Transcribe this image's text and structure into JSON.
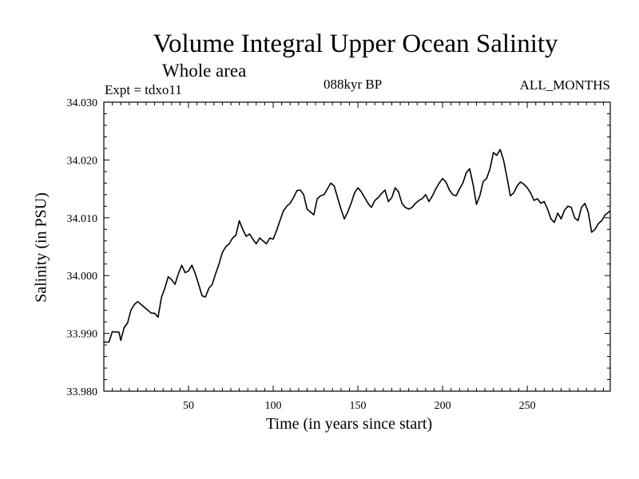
{
  "chart_data": {
    "type": "line",
    "title": "Volume Integral Upper Ocean Salinity",
    "subtitle": "Whole area",
    "annotations": {
      "experiment": "Expt = tdxo11",
      "period": "088kyr BP",
      "months": "ALL_MONTHS"
    },
    "xlabel": "Time (in years since start)",
    "ylabel": "Salinity (in PSU)",
    "xlim": [
      0,
      299
    ],
    "ylim": [
      33.98,
      34.03
    ],
    "xticks": [
      50,
      100,
      150,
      200,
      250
    ],
    "xtick_labels": [
      "50",
      "100",
      "150",
      "200",
      "250"
    ],
    "yticks": [
      33.98,
      33.99,
      34.0,
      34.01,
      34.02,
      34.03
    ],
    "ytick_labels": [
      "33.980",
      "33.990",
      "34.000",
      "34.010",
      "34.020",
      "34.030"
    ],
    "series": [
      {
        "name": "Salinity",
        "x": [
          0,
          3,
          5,
          9,
          10,
          12,
          14,
          16,
          18,
          20,
          22,
          24,
          26,
          28,
          30,
          32,
          34,
          36,
          38,
          40,
          42,
          44,
          46,
          48,
          50,
          52,
          54,
          56,
          58,
          60,
          62,
          64,
          66,
          68,
          70,
          72,
          74,
          76,
          78,
          80,
          82,
          84,
          86,
          88,
          90,
          92,
          94,
          96,
          98,
          100,
          102,
          104,
          106,
          108,
          110,
          112,
          114,
          116,
          118,
          120,
          122,
          124,
          126,
          128,
          130,
          132,
          134,
          136,
          138,
          140,
          142,
          144,
          146,
          148,
          150,
          152,
          154,
          156,
          158,
          160,
          162,
          164,
          166,
          168,
          170,
          172,
          174,
          176,
          178,
          180,
          182,
          184,
          186,
          188,
          190,
          192,
          194,
          196,
          198,
          200,
          202,
          204,
          206,
          208,
          210,
          212,
          214,
          216,
          218,
          220,
          222,
          224,
          226,
          228,
          230,
          232,
          234,
          236,
          238,
          240,
          242,
          244,
          246,
          248,
          250,
          252,
          254,
          256,
          258,
          260,
          262,
          264,
          266,
          268,
          270,
          272,
          274,
          276,
          278,
          280,
          282,
          284,
          286,
          288,
          290,
          292,
          294,
          296,
          299
        ],
        "values": [
          33.9885,
          33.9885,
          33.9903,
          33.9902,
          33.9888,
          33.991,
          33.9918,
          33.994,
          33.995,
          33.9955,
          33.995,
          33.9945,
          33.994,
          33.9935,
          33.9935,
          33.9928,
          33.9962,
          33.9978,
          33.9998,
          33.9993,
          33.9985,
          34.0003,
          34.0018,
          34.0005,
          34.0008,
          34.0018,
          34.0003,
          33.9985,
          33.9965,
          33.9963,
          33.9978,
          33.9985,
          34.0003,
          34.002,
          34.004,
          34.005,
          34.0055,
          34.0065,
          34.007,
          34.0095,
          34.008,
          34.0068,
          34.0072,
          34.0063,
          34.0055,
          34.0065,
          34.006,
          34.0055,
          34.0065,
          34.0063,
          34.0078,
          34.0095,
          34.0112,
          34.012,
          34.0125,
          34.0135,
          34.0147,
          34.0148,
          34.014,
          34.0115,
          34.011,
          34.0105,
          34.0133,
          34.0138,
          34.014,
          34.015,
          34.016,
          34.0155,
          34.0135,
          34.0115,
          34.0098,
          34.011,
          34.0125,
          34.0143,
          34.0152,
          34.0145,
          34.0135,
          34.0125,
          34.0118,
          34.013,
          34.0135,
          34.0142,
          34.0148,
          34.0128,
          34.0135,
          34.0152,
          34.0145,
          34.0125,
          34.0118,
          34.0115,
          34.0118,
          34.0125,
          34.013,
          34.0133,
          34.014,
          34.0128,
          34.0138,
          34.015,
          34.016,
          34.0168,
          34.0162,
          34.0148,
          34.014,
          34.0138,
          34.015,
          34.016,
          34.0178,
          34.0185,
          34.0158,
          34.0123,
          34.0138,
          34.0163,
          34.0168,
          34.0185,
          34.0213,
          34.0208,
          34.0218,
          34.02,
          34.017,
          34.0138,
          34.0143,
          34.0155,
          34.0162,
          34.0158,
          34.0152,
          34.0143,
          34.013,
          34.0133,
          34.0125,
          34.0128,
          34.0115,
          34.0098,
          34.0092,
          34.0108,
          34.0098,
          34.0113,
          34.012,
          34.0118,
          34.01,
          34.0095,
          34.0118,
          34.0125,
          34.011,
          34.0075,
          34.008,
          34.009,
          34.0095,
          34.0105,
          34.0112
        ]
      }
    ]
  }
}
